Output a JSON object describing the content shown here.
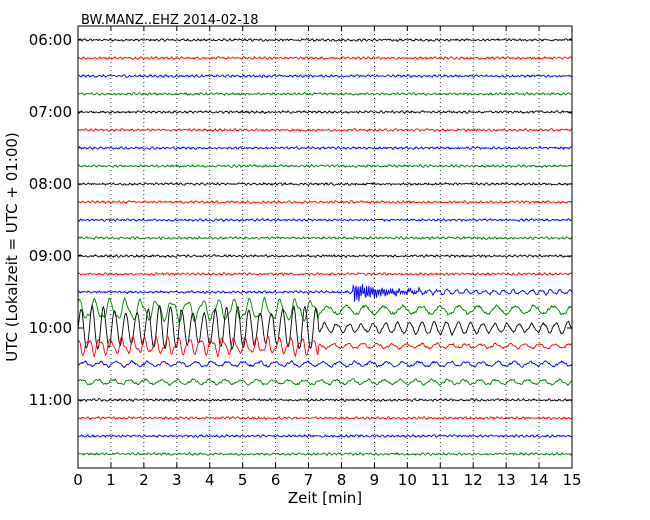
{
  "chart_data": {
    "type": "line",
    "title": "BW.MANZ..EHZ 2014-02-18",
    "xlabel": "Zeit  [min]",
    "ylabel": "UTC (Lokalzeit = UTC + 01:00)",
    "xlim": [
      0,
      15
    ],
    "x_ticks": [
      "0",
      "1",
      "2",
      "3",
      "4",
      "5",
      "6",
      "7",
      "8",
      "9",
      "10",
      "11",
      "12",
      "13",
      "14",
      "15"
    ],
    "y_tick_labels": [
      "06:00",
      "07:00",
      "08:00",
      "09:00",
      "10:00",
      "11:00"
    ],
    "grid": "vertical dotted lines at each minute",
    "trace_interval_minutes": 15,
    "start_time": "06:00",
    "trace_count": 24,
    "colors_cycle": [
      "#000000",
      "#ff0000",
      "#0000ff",
      "#008000"
    ],
    "events": [
      {
        "trace_start": "09:30",
        "onset_min": 8.35,
        "peak_amplitude": "large",
        "description_color": "#0000ff"
      },
      {
        "trace_start": "09:45",
        "onset_min": 0.0,
        "end_min": 7.3,
        "description_color": "#008000"
      },
      {
        "trace_start": "10:00",
        "onset_min": 0.0,
        "end_min": 15.0,
        "description_color": "#000000"
      },
      {
        "trace_start": "10:15",
        "onset_min": 0.0,
        "end_min": 7.3,
        "description_color": "#ff0000"
      }
    ]
  }
}
